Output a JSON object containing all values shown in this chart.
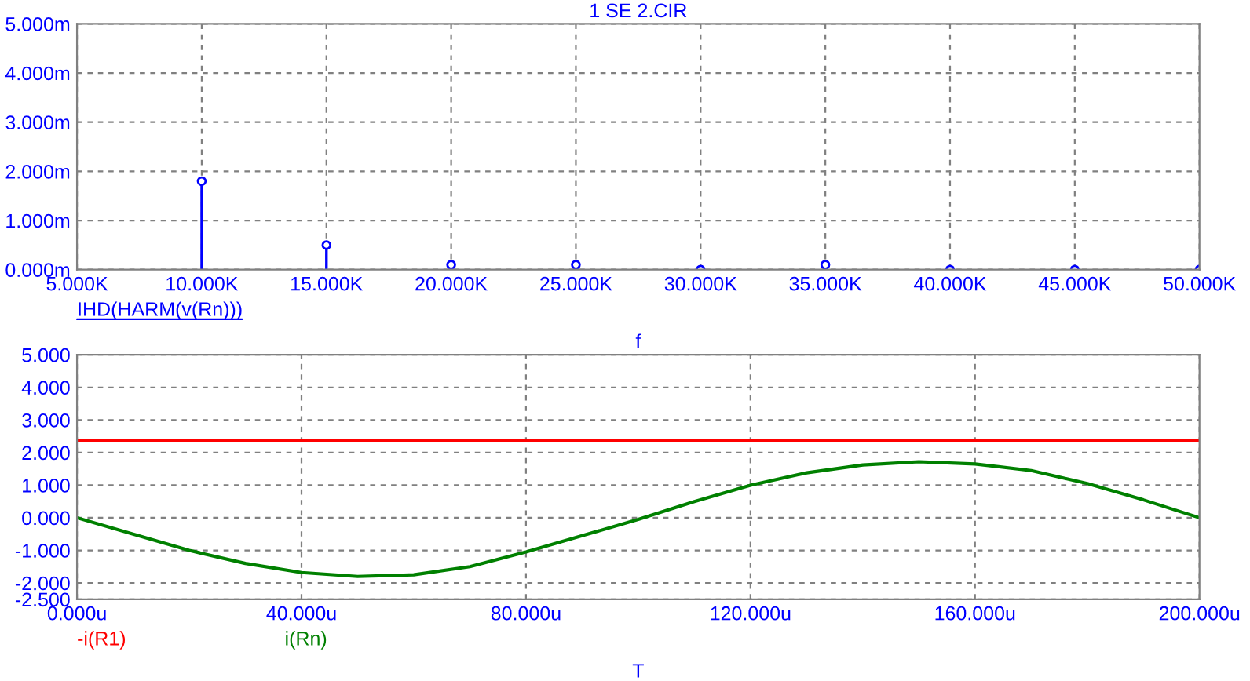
{
  "chart_data": [
    {
      "type": "lollipop",
      "title": "1 SE 2.CIR",
      "xlabel": "f",
      "x": [
        10000,
        15000,
        20000,
        25000,
        30000,
        35000,
        40000,
        45000,
        50000
      ],
      "series": [
        {
          "name": "IHD(HARM(v(Rn)))",
          "color": "#0000ff",
          "values": [
            1.8,
            0.5,
            0.1,
            0.1,
            0.0,
            0.1,
            0.0,
            0.0,
            0.0
          ]
        }
      ],
      "xlim": [
        5000,
        50000
      ],
      "xticks": [
        {
          "value": 5000,
          "label": "5.000K"
        },
        {
          "value": 10000,
          "label": "10.000K"
        },
        {
          "value": 15000,
          "label": "15.000K"
        },
        {
          "value": 20000,
          "label": "20.000K"
        },
        {
          "value": 25000,
          "label": "25.000K"
        },
        {
          "value": 30000,
          "label": "30.000K"
        },
        {
          "value": 35000,
          "label": "35.000K"
        },
        {
          "value": 40000,
          "label": "40.000K"
        },
        {
          "value": 45000,
          "label": "45.000K"
        },
        {
          "value": 50000,
          "label": "50.000K"
        }
      ],
      "ylim": [
        0,
        5
      ],
      "yticks": [
        {
          "value": 0,
          "label": "0.000m"
        },
        {
          "value": 1,
          "label": "1.000m"
        },
        {
          "value": 2,
          "label": "2.000m"
        },
        {
          "value": 3,
          "label": "3.000m"
        },
        {
          "value": 4,
          "label": "4.000m"
        },
        {
          "value": 5,
          "label": "5.000m"
        }
      ],
      "grid": true,
      "legend": "bottom left",
      "marker": "circle"
    },
    {
      "type": "line",
      "xlabel": "T",
      "series": [
        {
          "name": "-i(R1)",
          "color": "#ff0000",
          "x": [
            0,
            200
          ],
          "values": [
            2.38,
            2.38
          ]
        },
        {
          "name": "i(Rn)",
          "color": "#008000",
          "x": [
            0,
            10,
            20,
            30,
            40,
            50,
            60,
            70,
            80,
            90,
            100,
            110,
            120,
            130,
            140,
            150,
            160,
            170,
            180,
            190,
            200
          ],
          "values": [
            0,
            -0.5,
            -1.0,
            -1.4,
            -1.68,
            -1.8,
            -1.75,
            -1.5,
            -1.05,
            -0.55,
            -0.05,
            0.5,
            1.0,
            1.38,
            1.62,
            1.72,
            1.65,
            1.45,
            1.05,
            0.55,
            0.0
          ]
        }
      ],
      "xlim": [
        0,
        200
      ],
      "xticks": [
        {
          "value": 0,
          "label": "0.000u"
        },
        {
          "value": 40,
          "label": "40.000u"
        },
        {
          "value": 80,
          "label": "80.000u"
        },
        {
          "value": 120,
          "label": "120.000u"
        },
        {
          "value": 160,
          "label": "160.000u"
        },
        {
          "value": 200,
          "label": "200.000u"
        }
      ],
      "ylim": [
        -2.5,
        5
      ],
      "yticks": [
        {
          "value": -2.5,
          "label": "-2.500"
        },
        {
          "value": -2,
          "label": "-2.000"
        },
        {
          "value": -1,
          "label": "-1.000"
        },
        {
          "value": 0,
          "label": "0.000"
        },
        {
          "value": 1,
          "label": "1.000"
        },
        {
          "value": 2,
          "label": "2.000"
        },
        {
          "value": 3,
          "label": "3.000"
        },
        {
          "value": 4,
          "label": "4.000"
        },
        {
          "value": 5,
          "label": "5.000"
        }
      ],
      "grid": true,
      "legend": "bottom left",
      "marker": "none",
      "line_style": "solid"
    }
  ]
}
